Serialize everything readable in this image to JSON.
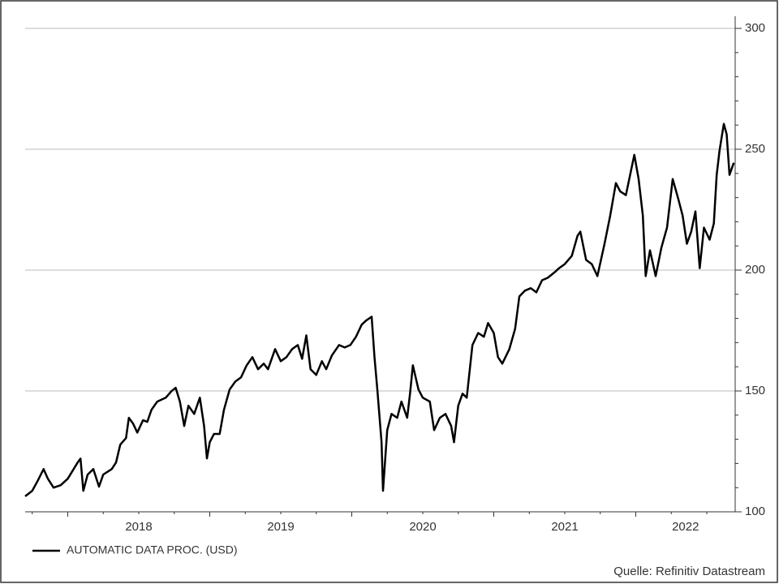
{
  "chart_data": {
    "type": "line",
    "series": [
      {
        "name": "AUTOMATIC DATA PROC. (USD)",
        "color": "#000000",
        "x": [
          2017.7,
          2017.75,
          2017.79,
          2017.83,
          2017.86,
          2017.9,
          2017.95,
          2018.0,
          2018.07,
          2018.09,
          2018.11,
          2018.14,
          2018.18,
          2018.22,
          2018.25,
          2018.31,
          2018.34,
          2018.37,
          2018.41,
          2018.43,
          2018.46,
          2018.49,
          2018.53,
          2018.56,
          2018.59,
          2018.63,
          2018.69,
          2018.73,
          2018.76,
          2018.79,
          2018.82,
          2018.85,
          2018.89,
          2018.93,
          2018.96,
          2018.98,
          2019.0,
          2019.03,
          2019.07,
          2019.1,
          2019.14,
          2019.18,
          2019.22,
          2019.26,
          2019.3,
          2019.34,
          2019.38,
          2019.41,
          2019.46,
          2019.5,
          2019.54,
          2019.58,
          2019.62,
          2019.65,
          2019.68,
          2019.71,
          2019.75,
          2019.79,
          2019.82,
          2019.86,
          2019.91,
          2019.95,
          2019.99,
          2020.03,
          2020.07,
          2020.1,
          2020.14,
          2020.16,
          2020.18,
          2020.21,
          2020.22,
          2020.25,
          2020.28,
          2020.32,
          2020.35,
          2020.39,
          2020.41,
          2020.43,
          2020.47,
          2020.5,
          2020.55,
          2020.58,
          2020.62,
          2020.66,
          2020.7,
          2020.72,
          2020.75,
          2020.78,
          2020.81,
          2020.85,
          2020.89,
          2020.93,
          2020.96,
          2021.0,
          2021.03,
          2021.06,
          2021.11,
          2021.15,
          2021.18,
          2021.22,
          2021.26,
          2021.3,
          2021.34,
          2021.38,
          2021.43,
          2021.46,
          2021.5,
          2021.55,
          2021.59,
          2021.61,
          2021.65,
          2021.69,
          2021.73,
          2021.78,
          2021.82,
          2021.86,
          2021.89,
          2021.93,
          2021.99,
          2022.02,
          2022.05,
          2022.07,
          2022.1,
          2022.14,
          2022.18,
          2022.22,
          2022.26,
          2022.3,
          2022.33,
          2022.36,
          2022.39,
          2022.42,
          2022.45,
          2022.48,
          2022.52,
          2022.55,
          2022.57,
          2022.59,
          2022.62,
          2022.64,
          2022.66,
          2022.69
        ],
        "values": [
          106.4,
          108.7,
          113,
          117.7,
          113.7,
          110,
          111,
          113.7,
          120.4,
          122,
          108.7,
          115.4,
          117.7,
          110.4,
          115.4,
          117.7,
          120.4,
          127.8,
          130.5,
          138.9,
          136.5,
          132.8,
          137.9,
          137.2,
          142.2,
          145.6,
          147.2,
          149.9,
          151.3,
          145.6,
          135.5,
          143.9,
          140.5,
          147.2,
          135.5,
          122.1,
          128.8,
          132.2,
          132.2,
          142.2,
          150.6,
          153.9,
          155.6,
          160.6,
          164,
          159,
          161.3,
          159,
          167.3,
          162.3,
          164,
          167.3,
          169,
          163.3,
          173,
          159,
          156.6,
          162.3,
          159,
          164.7,
          169,
          168,
          169,
          172.4,
          177.4,
          179.1,
          180.7,
          164,
          150.6,
          128.8,
          108.7,
          133.8,
          140.5,
          138.9,
          145.6,
          138.9,
          148.9,
          160.6,
          150.6,
          147.2,
          145.6,
          133.8,
          138.9,
          140.5,
          135.5,
          128.8,
          143.9,
          148.9,
          147.2,
          169,
          174,
          172.4,
          178.1,
          174,
          164,
          161.3,
          167.3,
          175.7,
          189.1,
          191.5,
          192.5,
          190.8,
          195.8,
          196.8,
          199.2,
          200.8,
          202.5,
          205.9,
          214.2,
          215.9,
          204.2,
          202.5,
          197.5,
          210.9,
          222.6,
          236,
          232.6,
          231,
          247.7,
          237.7,
          222.6,
          197.5,
          208.2,
          197.5,
          209.2,
          217.6,
          237.7,
          229.3,
          222.6,
          210.9,
          215.9,
          224.3,
          200.8,
          217.6,
          212.6,
          219.3,
          239.4,
          249.4,
          260.5,
          256.2,
          239.4,
          244.4
        ]
      }
    ],
    "xlim": [
      2017.7,
      2022.7
    ],
    "xticks": [
      2018,
      2019,
      2020,
      2021,
      2022
    ],
    "ylim": [
      100,
      300
    ],
    "yticks": [
      100,
      150,
      200,
      250,
      300
    ],
    "grid": true,
    "legend": "bottom-left",
    "source": "Quelle: Refinitiv Datastream"
  }
}
